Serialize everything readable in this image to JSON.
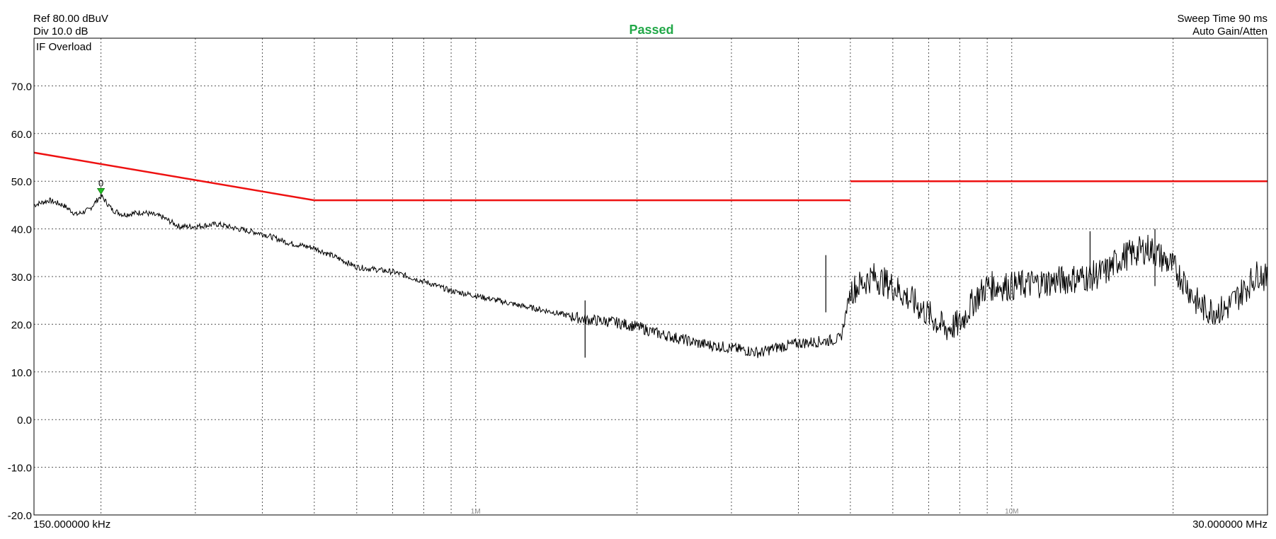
{
  "header": {
    "ref": "Ref 80.00 dBuV",
    "div": "Div 10.0 dB",
    "status": "Passed",
    "sweep_time": "Sweep Time 90 ms",
    "gain": "Auto Gain/Atten",
    "overlay": "IF Overload"
  },
  "axis": {
    "x_start_label": "150.000000 kHz",
    "x_stop_label": "30.000000 MHz",
    "x_decade_labels": [
      "1M",
      "10M"
    ]
  },
  "marker": {
    "label": "0",
    "color": "#22c022"
  },
  "colors": {
    "status": "#22a848",
    "limit": "#ee1111",
    "trace": "#000000",
    "grid": "#555555"
  },
  "chart_data": {
    "type": "line",
    "x_scale": "log",
    "xlim_mhz": [
      0.15,
      30
    ],
    "ylim": [
      -20,
      80
    ],
    "ytick_labels": [
      "70.0",
      "60.0",
      "50.0",
      "40.0",
      "30.0",
      "20.0",
      "10.0",
      "0.0",
      "-10.0",
      "-20.0"
    ],
    "grid": true,
    "series": [
      {
        "role": "limit",
        "segments": [
          [
            [
              0.15,
              56
            ],
            [
              0.5,
              46
            ]
          ],
          [
            [
              0.5,
              46
            ],
            [
              5,
              46
            ]
          ],
          [
            [
              5,
              50
            ],
            [
              30,
              50
            ]
          ]
        ]
      },
      {
        "role": "trace",
        "points": [
          [
            0.15,
            45
          ],
          [
            0.16,
            46
          ],
          [
            0.17,
            45
          ],
          [
            0.18,
            43
          ],
          [
            0.19,
            44
          ],
          [
            0.2,
            47
          ],
          [
            0.21,
            44
          ],
          [
            0.22,
            43
          ],
          [
            0.24,
            43.5
          ],
          [
            0.26,
            42.5
          ],
          [
            0.28,
            40.5
          ],
          [
            0.3,
            40.5
          ],
          [
            0.33,
            41
          ],
          [
            0.36,
            40
          ],
          [
            0.4,
            39
          ],
          [
            0.45,
            37
          ],
          [
            0.5,
            36
          ],
          [
            0.55,
            34
          ],
          [
            0.6,
            32
          ],
          [
            0.7,
            31
          ],
          [
            0.8,
            29
          ],
          [
            0.9,
            27
          ],
          [
            1.0,
            26
          ],
          [
            1.2,
            24
          ],
          [
            1.4,
            22.5
          ],
          [
            1.6,
            21
          ],
          [
            1.8,
            20.5
          ],
          [
            2.0,
            19.5
          ],
          [
            2.2,
            18
          ],
          [
            2.4,
            17
          ],
          [
            2.6,
            16
          ],
          [
            3.0,
            15
          ],
          [
            3.4,
            14
          ],
          [
            3.6,
            15
          ],
          [
            4.0,
            16
          ],
          [
            4.5,
            16.5
          ],
          [
            4.8,
            17
          ],
          [
            5.0,
            27
          ],
          [
            5.5,
            30
          ],
          [
            6.0,
            28
          ],
          [
            6.5,
            25
          ],
          [
            7.0,
            22
          ],
          [
            7.5,
            19
          ],
          [
            8.0,
            20
          ],
          [
            8.5,
            25
          ],
          [
            9.0,
            28
          ],
          [
            10.0,
            28
          ],
          [
            12.0,
            29
          ],
          [
            14.0,
            30
          ],
          [
            15.0,
            31
          ],
          [
            16.0,
            34
          ],
          [
            18.0,
            36
          ],
          [
            19.0,
            34
          ],
          [
            20.0,
            32
          ],
          [
            21.0,
            29
          ],
          [
            22.0,
            25
          ],
          [
            23.0,
            23
          ],
          [
            25.0,
            23
          ],
          [
            27.0,
            27
          ],
          [
            29.0,
            31
          ],
          [
            30.0,
            29
          ]
        ]
      }
    ],
    "spikes": [
      [
        1.6,
        25
      ],
      [
        4.5,
        34.5
      ],
      [
        14.0,
        39.5
      ],
      [
        18.5,
        40
      ]
    ],
    "noise_band_start_mhz": 5.0,
    "marker_point": [
      0.2,
      47
    ]
  }
}
